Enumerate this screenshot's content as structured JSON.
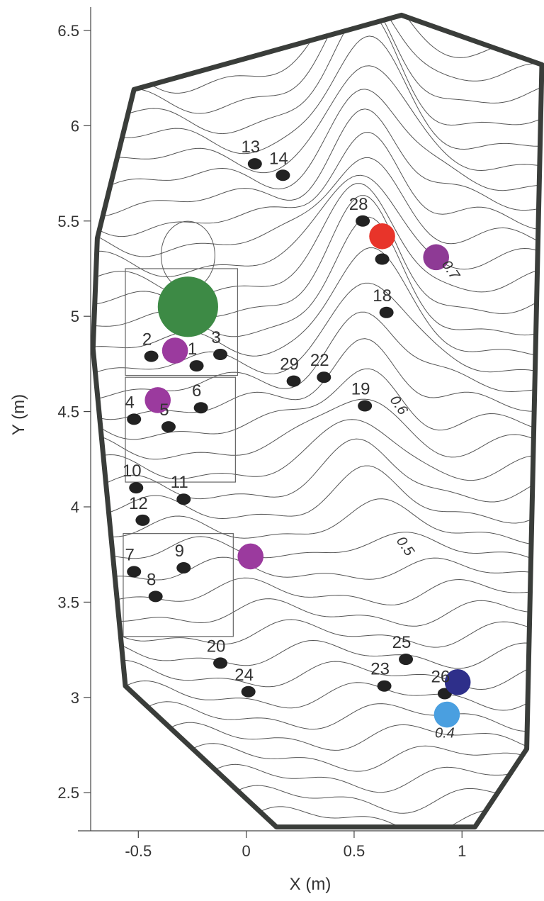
{
  "chart_data": {
    "type": "scatter",
    "title": "",
    "xlabel": "X (m)",
    "ylabel": "Y (m)",
    "xlim": [
      -0.78,
      1.38
    ],
    "ylim": [
      2.3,
      6.63
    ],
    "x_ticks": [
      {
        "value": -0.5,
        "label": "-0.5"
      },
      {
        "value": 0,
        "label": "0"
      },
      {
        "value": 0.5,
        "label": "0.5"
      },
      {
        "value": 1,
        "label": "1"
      }
    ],
    "y_ticks": [
      {
        "value": 2.5,
        "label": "2.5"
      },
      {
        "value": 3,
        "label": "3"
      },
      {
        "value": 3.5,
        "label": "3.5"
      },
      {
        "value": 4,
        "label": "4"
      },
      {
        "value": 4.5,
        "label": "4.5"
      },
      {
        "value": 5,
        "label": "5"
      },
      {
        "value": 5.5,
        "label": "5.5"
      },
      {
        "value": 6,
        "label": "6"
      },
      {
        "value": 6.5,
        "label": "6.5"
      }
    ],
    "boundary": [
      [
        -0.52,
        6.19
      ],
      [
        0.72,
        6.58
      ],
      [
        1.37,
        6.32
      ],
      [
        1.3,
        2.73
      ],
      [
        1.06,
        2.32
      ],
      [
        0.14,
        2.32
      ],
      [
        -0.56,
        3.06
      ],
      [
        -0.71,
        4.83
      ],
      [
        -0.69,
        5.41
      ]
    ],
    "boxes": [
      {
        "x": [
          -0.56,
          -0.04
        ],
        "y": [
          4.69,
          5.25
        ]
      },
      {
        "x": [
          -0.56,
          -0.05
        ],
        "y": [
          4.13,
          4.68
        ]
      },
      {
        "x": [
          -0.57,
          -0.06
        ],
        "y": [
          3.32,
          3.86
        ]
      }
    ],
    "points": [
      {
        "label": "1",
        "x": -0.23,
        "y": 4.74
      },
      {
        "label": "2",
        "x": -0.44,
        "y": 4.79
      },
      {
        "label": "3",
        "x": -0.12,
        "y": 4.8
      },
      {
        "label": "4",
        "x": -0.52,
        "y": 4.46
      },
      {
        "label": "5",
        "x": -0.36,
        "y": 4.42
      },
      {
        "label": "6",
        "x": -0.21,
        "y": 4.52
      },
      {
        "label": "7",
        "x": -0.52,
        "y": 3.66
      },
      {
        "label": "8",
        "x": -0.42,
        "y": 3.53
      },
      {
        "label": "9",
        "x": -0.29,
        "y": 3.68
      },
      {
        "label": "10",
        "x": -0.51,
        "y": 4.1
      },
      {
        "label": "11",
        "x": -0.29,
        "y": 4.04
      },
      {
        "label": "12",
        "x": -0.48,
        "y": 3.93
      },
      {
        "label": "13",
        "x": 0.04,
        "y": 5.8
      },
      {
        "label": "14",
        "x": 0.17,
        "y": 5.74
      },
      {
        "label": "18",
        "x": 0.65,
        "y": 5.02
      },
      {
        "label": "19",
        "x": 0.55,
        "y": 4.53
      },
      {
        "label": "20",
        "x": -0.12,
        "y": 3.18
      },
      {
        "label": "22",
        "x": 0.36,
        "y": 4.68
      },
      {
        "label": "23",
        "x": 0.64,
        "y": 3.06
      },
      {
        "label": "24",
        "x": 0.01,
        "y": 3.03
      },
      {
        "label": "25",
        "x": 0.74,
        "y": 3.2
      },
      {
        "label": "26",
        "x": 0.92,
        "y": 3.02
      },
      {
        "label": "28",
        "x": 0.54,
        "y": 5.5
      },
      {
        "label": "29",
        "x": 0.22,
        "y": 4.66
      },
      {
        "label": "",
        "x": 0.63,
        "y": 5.3
      }
    ],
    "markers": [
      {
        "x": -0.27,
        "y": 5.05,
        "r": 0.14,
        "color": "#3d8a45"
      },
      {
        "x": -0.33,
        "y": 4.82,
        "r": 0.06,
        "color": "#9b3a9e"
      },
      {
        "x": -0.41,
        "y": 4.56,
        "r": 0.06,
        "color": "#9b3a9e"
      },
      {
        "x": 0.02,
        "y": 3.74,
        "r": 0.06,
        "color": "#9b3a9e"
      },
      {
        "x": 0.88,
        "y": 5.31,
        "r": 0.06,
        "color": "#8e3a95"
      },
      {
        "x": 0.63,
        "y": 5.42,
        "r": 0.06,
        "color": "#e8342a"
      },
      {
        "x": 0.98,
        "y": 3.08,
        "r": 0.06,
        "color": "#2e2f8a"
      },
      {
        "x": 0.93,
        "y": 2.91,
        "r": 0.06,
        "color": "#4a9fe0"
      }
    ],
    "contour_labels": [
      {
        "text": "0.7",
        "x": 0.93,
        "y": 5.23
      },
      {
        "text": "0.6",
        "x": 0.69,
        "y": 4.52
      },
      {
        "text": "0.5",
        "x": 0.72,
        "y": 3.78
      },
      {
        "text": "0.4",
        "x": 0.92,
        "y": 2.79
      }
    ],
    "contour_levels": [
      0.4,
      0.5,
      0.6,
      0.7
    ],
    "colors": {
      "boundary": "#3a3d3a",
      "contour": "#555555",
      "box": "#666666",
      "sensor": "#222222"
    }
  }
}
